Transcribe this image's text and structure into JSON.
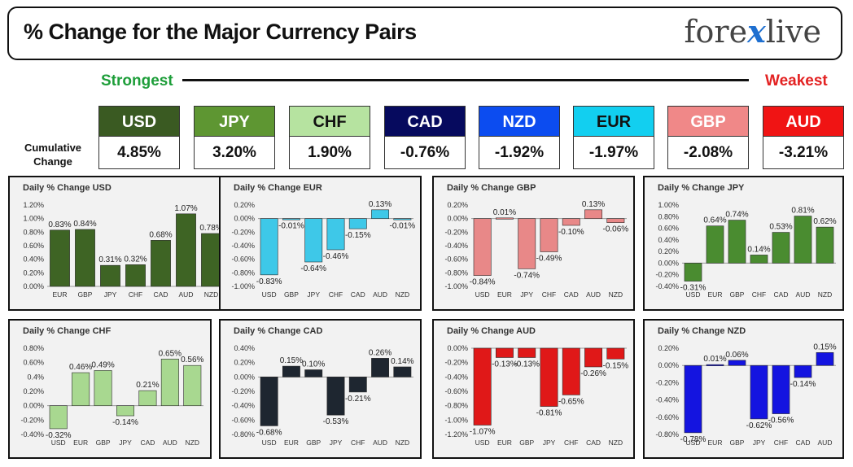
{
  "header": {
    "title": "% Change for the Major Currency Pairs",
    "logo_left": "fore",
    "logo_x": "x",
    "logo_right": "live"
  },
  "legend": {
    "strongest": "Strongest",
    "weakest": "Weakest"
  },
  "cumulative_label": "Cumulative Change",
  "currencies": [
    {
      "code": "USD",
      "value": "4.85%",
      "color": "#3a5a22",
      "text_color": "#ffffff"
    },
    {
      "code": "JPY",
      "value": "3.20%",
      "color": "#5e9632",
      "text_color": "#ffffff"
    },
    {
      "code": "CHF",
      "value": "1.90%",
      "color": "#b6e3a0",
      "text_color": "#111111"
    },
    {
      "code": "CAD",
      "value": "-0.76%",
      "color": "#060a5e",
      "text_color": "#ffffff"
    },
    {
      "code": "NZD",
      "value": "-1.92%",
      "color": "#0c4cf0",
      "text_color": "#ffffff"
    },
    {
      "code": "EUR",
      "value": "-1.97%",
      "color": "#12cff0",
      "text_color": "#111111"
    },
    {
      "code": "GBP",
      "value": "-2.08%",
      "color": "#f08888",
      "text_color": "#ffffff"
    },
    {
      "code": "AUD",
      "value": "-3.21%",
      "color": "#f01414",
      "text_color": "#ffffff"
    }
  ],
  "chart_data": [
    {
      "type": "bar",
      "title": "Daily % Change USD",
      "color": "#3e6424",
      "categories": [
        "EUR",
        "GBP",
        "JPY",
        "CHF",
        "CAD",
        "AUD",
        "NZD"
      ],
      "values": [
        0.83,
        0.84,
        0.31,
        0.32,
        0.68,
        1.07,
        0.78
      ],
      "data_labels": [
        "0.83%",
        "0.84%",
        "0.31%",
        "0.32%",
        "0.68%",
        "1.07%",
        "0.78%"
      ],
      "ylim": [
        0,
        1.2
      ],
      "yticks": [
        0,
        0.2,
        0.4,
        0.6,
        0.8,
        1.0,
        1.2
      ],
      "ytick_labels": [
        "0.00%",
        "0.20%",
        "0.40%",
        "0.60%",
        "0.80%",
        "1.00%",
        "1.20%"
      ]
    },
    {
      "type": "bar",
      "title": "Daily % Change EUR",
      "color": "#3ec8e8",
      "categories": [
        "USD",
        "GBP",
        "JPY",
        "CHF",
        "CAD",
        "AUD",
        "NZD"
      ],
      "values": [
        -0.83,
        -0.01,
        -0.64,
        -0.46,
        -0.15,
        0.13,
        -0.01
      ],
      "data_labels": [
        "-0.83%",
        "-0.01%",
        "-0.64%",
        "-0.46%",
        "-0.15%",
        "0.13%",
        "-0.01%"
      ],
      "ylim": [
        -1.0,
        0.2
      ],
      "yticks": [
        -1.0,
        -0.8,
        -0.6,
        -0.4,
        -0.2,
        0,
        0.2
      ],
      "ytick_labels": [
        "-1.00%",
        "-0.80%",
        "-0.60%",
        "-0.40%",
        "-0.20%",
        "0.00%",
        "0.20%"
      ]
    },
    {
      "type": "bar",
      "title": "Daily % Change GBP",
      "color": "#e88888",
      "categories": [
        "USD",
        "EUR",
        "JPY",
        "CHF",
        "CAD",
        "AUD",
        "NZD"
      ],
      "values": [
        -0.84,
        0.01,
        -0.74,
        -0.49,
        -0.1,
        0.13,
        -0.06
      ],
      "data_labels": [
        "-0.84%",
        "0.01%",
        "-0.74%",
        "-0.49%",
        "-0.10%",
        "0.13%",
        "-0.06%"
      ],
      "ylim": [
        -1.0,
        0.2
      ],
      "yticks": [
        -1.0,
        -0.8,
        -0.6,
        -0.4,
        -0.2,
        0,
        0.2
      ],
      "ytick_labels": [
        "-1.00%",
        "-0.80%",
        "-0.60%",
        "-0.40%",
        "-0.20%",
        "0.00%",
        "0.20%"
      ]
    },
    {
      "type": "bar",
      "title": "Daily % Change JPY",
      "color": "#4a8c30",
      "categories": [
        "USD",
        "EUR",
        "GBP",
        "CHF",
        "CAD",
        "AUD",
        "NZD"
      ],
      "values": [
        -0.31,
        0.64,
        0.74,
        0.14,
        0.53,
        0.81,
        0.62
      ],
      "data_labels": [
        "-0.31%",
        "0.64%",
        "0.74%",
        "0.14%",
        "0.53%",
        "0.81%",
        "0.62%"
      ],
      "ylim": [
        -0.4,
        1.0
      ],
      "yticks": [
        -0.4,
        -0.2,
        0,
        0.2,
        0.4,
        0.6,
        0.8,
        1.0
      ],
      "ytick_labels": [
        "-0.40%",
        "-0.20%",
        "0.00%",
        "0.20%",
        "0.40%",
        "0.60%",
        "0.80%",
        "1.00%"
      ]
    },
    {
      "type": "bar",
      "title": "Daily % Change CHF",
      "color": "#a8d890",
      "categories": [
        "USD",
        "EUR",
        "GBP",
        "JPY",
        "CAD",
        "AUD",
        "NZD"
      ],
      "values": [
        -0.32,
        0.46,
        0.49,
        -0.14,
        0.21,
        0.65,
        0.56
      ],
      "data_labels": [
        "-0.32%",
        "0.46%",
        "0.49%",
        "-0.14%",
        "0.21%",
        "0.65%",
        "0.56%"
      ],
      "ylim": [
        -0.4,
        0.8
      ],
      "yticks": [
        -0.4,
        -0.2,
        0,
        0.2,
        0.4,
        0.6,
        0.8
      ],
      "ytick_labels": [
        "-0.40%",
        "-0.20%",
        "0.00%",
        "0.20%",
        "0.4%",
        "0.60%",
        "0.80%"
      ]
    },
    {
      "type": "bar",
      "title": "Daily % Change CAD",
      "color": "#1e2630",
      "categories": [
        "USD",
        "EUR",
        "GBP",
        "JPY",
        "CHF",
        "AUD",
        "NZD"
      ],
      "values": [
        -0.68,
        0.15,
        0.1,
        -0.53,
        -0.21,
        0.26,
        0.14
      ],
      "data_labels": [
        "-0.68%",
        "0.15%",
        "0.10%",
        "-0.53%",
        "-0.21%",
        "0.26%",
        "0.14%"
      ],
      "ylim": [
        -0.8,
        0.4
      ],
      "yticks": [
        -0.8,
        -0.6,
        -0.4,
        -0.2,
        0,
        0.2,
        0.4
      ],
      "ytick_labels": [
        "-0.80%",
        "-0.60%",
        "-0.40%",
        "-0.20%",
        "0.00%",
        "0.20%",
        "0.40%"
      ]
    },
    {
      "type": "bar",
      "title": "Daily % Change AUD",
      "color": "#e01818",
      "categories": [
        "USD",
        "EUR",
        "GBP",
        "JPY",
        "CHF",
        "CAD",
        "NZD"
      ],
      "values": [
        -1.07,
        -0.13,
        -0.13,
        -0.81,
        -0.65,
        -0.26,
        -0.15
      ],
      "data_labels": [
        "-1.07%",
        "-0.13%",
        "-0.13%",
        "-0.81%",
        "-0.65%",
        "-0.26%",
        "-0.15%"
      ],
      "ylim": [
        -1.2,
        0
      ],
      "yticks": [
        -1.2,
        -1.0,
        -0.8,
        -0.6,
        -0.4,
        -0.2,
        0
      ],
      "ytick_labels": [
        "-1.20%",
        "-1.00%",
        "-0.80%",
        "-0.60%",
        "-0.40%",
        "-0.20%",
        "0.00%"
      ]
    },
    {
      "type": "bar",
      "title": "Daily % Change NZD",
      "color": "#1414e0",
      "categories": [
        "USD",
        "EUR",
        "GBP",
        "JPY",
        "CHF",
        "CAD",
        "AUD"
      ],
      "values": [
        -0.78,
        0.01,
        0.06,
        -0.62,
        -0.56,
        -0.14,
        0.15
      ],
      "data_labels": [
        "-0.78%",
        "0.01%",
        "0.06%",
        "-0.62%",
        "-0.56%",
        "-0.14%",
        "0.15%"
      ],
      "ylim": [
        -0.8,
        0.2
      ],
      "yticks": [
        -0.8,
        -0.6,
        -0.4,
        -0.2,
        0,
        0.2
      ],
      "ytick_labels": [
        "-0.80%",
        "-0.60%",
        "-0.40%",
        "-0.20%",
        "0.00%",
        "0.20%"
      ]
    }
  ]
}
